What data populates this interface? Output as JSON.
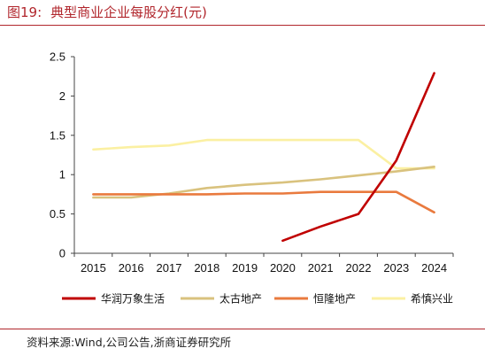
{
  "header": {
    "figure_label": "图19:",
    "title": "典型商业企业每股分红(元)"
  },
  "footer": {
    "source": "资料来源:Wind,公司公告,浙商证券研究所"
  },
  "chart_data": {
    "type": "line",
    "x": [
      2015,
      2016,
      2017,
      2018,
      2019,
      2020,
      2021,
      2022,
      2023,
      2024
    ],
    "x_tick_labels": [
      "2015",
      "2016",
      "2017",
      "2018",
      "2019",
      "2020",
      "2021",
      "2022",
      "2023",
      "2024"
    ],
    "ylim": [
      0,
      2.5
    ],
    "y_ticks": [
      0,
      0.5,
      1,
      1.5,
      2,
      2.5
    ],
    "y_tick_labels": [
      "0",
      "0.5",
      "1",
      "1.5",
      "2",
      "2.5"
    ],
    "grid": false,
    "legend_position": "bottom",
    "series": [
      {
        "name": "华润万象生活",
        "color": "#c00000",
        "values": [
          null,
          null,
          null,
          null,
          null,
          0.16,
          0.34,
          0.5,
          1.18,
          2.29
        ]
      },
      {
        "name": "太古地产",
        "color": "#d9c27e",
        "values": [
          0.71,
          0.71,
          0.76,
          0.83,
          0.87,
          0.9,
          0.94,
          0.99,
          1.04,
          1.1
        ]
      },
      {
        "name": "恒隆地产",
        "color": "#e97a3e",
        "values": [
          0.75,
          0.75,
          0.75,
          0.75,
          0.76,
          0.76,
          0.78,
          0.78,
          0.78,
          0.52
        ]
      },
      {
        "name": "希慎兴业",
        "color": "#fbf0a2",
        "values": [
          1.32,
          1.35,
          1.37,
          1.44,
          1.44,
          1.44,
          1.44,
          1.44,
          1.08,
          1.08
        ]
      }
    ]
  }
}
